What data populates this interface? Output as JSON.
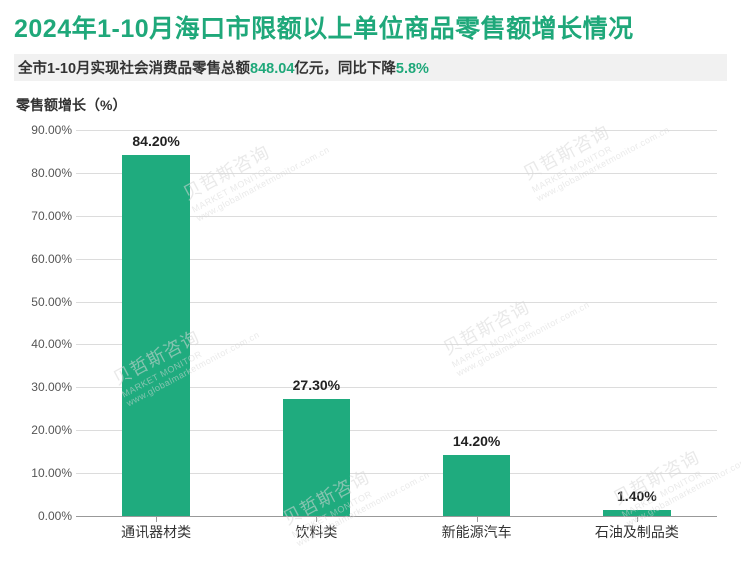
{
  "title": {
    "text": "2024年1-10月海口市限额以上单位商品零售额增长情况",
    "color": "#1fa87a",
    "fontsize": 25,
    "fontweight": "bold"
  },
  "subtitle": {
    "pre": "全市1-10月实现社会消费品零售总额",
    "amount": "848.04",
    "mid": "亿元，同比下降",
    "pct": "5.8%",
    "highlight_color": "#1fa87a",
    "bg": "#f1f1f1",
    "fontsize": 14.5
  },
  "axis_title": {
    "text": "零售额增长（%）",
    "fontsize": 14,
    "color": "#333333"
  },
  "chart": {
    "type": "bar",
    "categories": [
      "通讯器材类",
      "饮料类",
      "新能源汽车",
      "石油及制品类"
    ],
    "values": [
      84.2,
      27.3,
      14.2,
      1.4
    ],
    "value_labels": [
      "84.20%",
      "27.30%",
      "14.20%",
      "1.40%"
    ],
    "bar_color": "#1fab7e",
    "bar_width_ratio": 0.42,
    "ylim": [
      0,
      90
    ],
    "ytick_step": 10,
    "ytick_format": "{v}.00%",
    "grid_color": "#dcdcdc",
    "axis_color": "#999999",
    "background": "#ffffff",
    "label_fontsize": 14,
    "label_fontweight": "bold",
    "tick_fontsize": 12,
    "x_fontsize": 14
  },
  "watermark": {
    "main": "贝哲斯咨询",
    "sub": "www.globalmarketmonitor.com.cn",
    "color": "#d8d8d8"
  }
}
